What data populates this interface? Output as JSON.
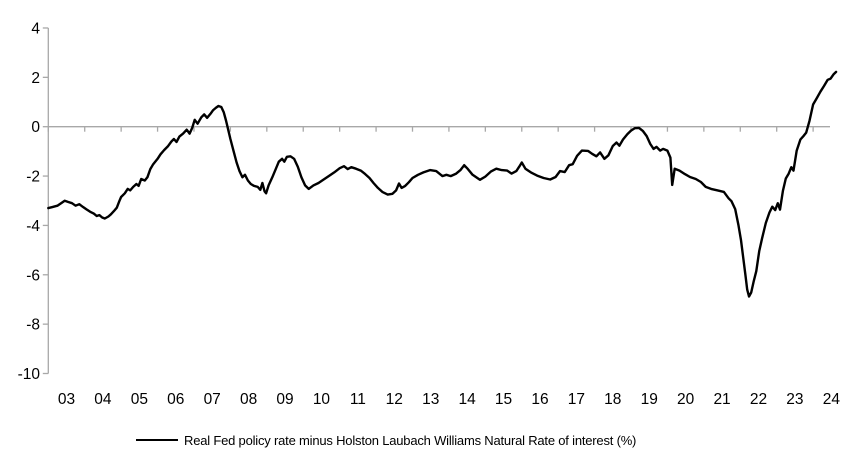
{
  "chart_data": {
    "type": "line",
    "title": "",
    "xlabel": "",
    "ylabel": "",
    "grid": "off",
    "legend_position": "bottom-center",
    "axis_color": "#A8A8A8",
    "background": "#ffffff",
    "x_axis": {
      "tick_years": [
        2003,
        2004,
        2005,
        2006,
        2007,
        2008,
        2009,
        2010,
        2011,
        2012,
        2013,
        2014,
        2015,
        2016,
        2017,
        2018,
        2019,
        2020,
        2021,
        2022,
        2023,
        2024
      ],
      "tick_labels": [
        "03",
        "04",
        "05",
        "06",
        "07",
        "08",
        "09",
        "10",
        "11",
        "12",
        "13",
        "14",
        "15",
        "16",
        "17",
        "18",
        "19",
        "20",
        "21",
        "22",
        "23",
        "24"
      ],
      "range": [
        2003,
        2024.63
      ],
      "axis_drawn_at_value": 0
    },
    "y_axis": {
      "ticks": [
        4,
        2,
        0,
        -2,
        -4,
        -6,
        -8,
        -10
      ],
      "tick_labels": [
        "4",
        "2",
        "0",
        "-2",
        "-4",
        "-6",
        "-8",
        "-10"
      ],
      "range": [
        -10,
        4
      ]
    },
    "series": [
      {
        "name": "Real Fed policy rate minus Holston Laubach Williams Natural Rate of interest (%)",
        "color": "#000000",
        "points": [
          [
            2003.0,
            -3.3
          ],
          [
            2003.1,
            -3.26
          ],
          [
            2003.25,
            -3.2
          ],
          [
            2003.37,
            -3.08
          ],
          [
            2003.45,
            -3.0
          ],
          [
            2003.55,
            -3.05
          ],
          [
            2003.65,
            -3.1
          ],
          [
            2003.75,
            -3.2
          ],
          [
            2003.85,
            -3.14
          ],
          [
            2003.95,
            -3.25
          ],
          [
            2004.05,
            -3.35
          ],
          [
            2004.15,
            -3.45
          ],
          [
            2004.25,
            -3.52
          ],
          [
            2004.33,
            -3.62
          ],
          [
            2004.4,
            -3.58
          ],
          [
            2004.48,
            -3.68
          ],
          [
            2004.55,
            -3.72
          ],
          [
            2004.65,
            -3.64
          ],
          [
            2004.72,
            -3.55
          ],
          [
            2004.8,
            -3.42
          ],
          [
            2004.88,
            -3.28
          ],
          [
            2004.95,
            -3.02
          ],
          [
            2005.0,
            -2.85
          ],
          [
            2005.1,
            -2.7
          ],
          [
            2005.18,
            -2.52
          ],
          [
            2005.25,
            -2.58
          ],
          [
            2005.33,
            -2.44
          ],
          [
            2005.42,
            -2.32
          ],
          [
            2005.48,
            -2.4
          ],
          [
            2005.55,
            -2.12
          ],
          [
            2005.65,
            -2.18
          ],
          [
            2005.72,
            -2.05
          ],
          [
            2005.8,
            -1.72
          ],
          [
            2005.88,
            -1.52
          ],
          [
            2006.0,
            -1.3
          ],
          [
            2006.08,
            -1.12
          ],
          [
            2006.18,
            -0.95
          ],
          [
            2006.28,
            -0.8
          ],
          [
            2006.38,
            -0.6
          ],
          [
            2006.45,
            -0.5
          ],
          [
            2006.52,
            -0.62
          ],
          [
            2006.6,
            -0.4
          ],
          [
            2006.7,
            -0.28
          ],
          [
            2006.8,
            -0.12
          ],
          [
            2006.88,
            -0.28
          ],
          [
            2006.95,
            -0.05
          ],
          [
            2007.02,
            0.28
          ],
          [
            2007.1,
            0.12
          ],
          [
            2007.2,
            0.38
          ],
          [
            2007.28,
            0.5
          ],
          [
            2007.36,
            0.36
          ],
          [
            2007.45,
            0.52
          ],
          [
            2007.52,
            0.66
          ],
          [
            2007.6,
            0.76
          ],
          [
            2007.67,
            0.84
          ],
          [
            2007.75,
            0.8
          ],
          [
            2007.82,
            0.58
          ],
          [
            2007.88,
            0.25
          ],
          [
            2007.94,
            -0.12
          ],
          [
            2008.0,
            -0.5
          ],
          [
            2008.08,
            -0.95
          ],
          [
            2008.17,
            -1.45
          ],
          [
            2008.25,
            -1.8
          ],
          [
            2008.33,
            -2.05
          ],
          [
            2008.4,
            -1.95
          ],
          [
            2008.48,
            -2.18
          ],
          [
            2008.56,
            -2.32
          ],
          [
            2008.65,
            -2.4
          ],
          [
            2008.75,
            -2.44
          ],
          [
            2008.82,
            -2.56
          ],
          [
            2008.88,
            -2.28
          ],
          [
            2008.94,
            -2.62
          ],
          [
            2008.98,
            -2.7
          ],
          [
            2009.05,
            -2.38
          ],
          [
            2009.15,
            -2.05
          ],
          [
            2009.25,
            -1.7
          ],
          [
            2009.33,
            -1.42
          ],
          [
            2009.42,
            -1.3
          ],
          [
            2009.48,
            -1.42
          ],
          [
            2009.55,
            -1.22
          ],
          [
            2009.65,
            -1.2
          ],
          [
            2009.75,
            -1.3
          ],
          [
            2009.85,
            -1.62
          ],
          [
            2009.95,
            -2.05
          ],
          [
            2010.05,
            -2.38
          ],
          [
            2010.15,
            -2.52
          ],
          [
            2010.28,
            -2.38
          ],
          [
            2010.42,
            -2.28
          ],
          [
            2010.55,
            -2.15
          ],
          [
            2010.7,
            -2.0
          ],
          [
            2010.85,
            -1.85
          ],
          [
            2011.0,
            -1.68
          ],
          [
            2011.12,
            -1.6
          ],
          [
            2011.22,
            -1.72
          ],
          [
            2011.32,
            -1.64
          ],
          [
            2011.45,
            -1.7
          ],
          [
            2011.58,
            -1.78
          ],
          [
            2011.7,
            -1.92
          ],
          [
            2011.82,
            -2.08
          ],
          [
            2011.93,
            -2.28
          ],
          [
            2012.05,
            -2.48
          ],
          [
            2012.18,
            -2.65
          ],
          [
            2012.32,
            -2.75
          ],
          [
            2012.45,
            -2.72
          ],
          [
            2012.55,
            -2.58
          ],
          [
            2012.63,
            -2.3
          ],
          [
            2012.7,
            -2.48
          ],
          [
            2012.8,
            -2.4
          ],
          [
            2012.9,
            -2.25
          ],
          [
            2013.0,
            -2.08
          ],
          [
            2013.15,
            -1.95
          ],
          [
            2013.3,
            -1.85
          ],
          [
            2013.48,
            -1.76
          ],
          [
            2013.65,
            -1.8
          ],
          [
            2013.82,
            -2.0
          ],
          [
            2013.93,
            -1.95
          ],
          [
            2014.05,
            -2.0
          ],
          [
            2014.2,
            -1.9
          ],
          [
            2014.32,
            -1.75
          ],
          [
            2014.42,
            -1.56
          ],
          [
            2014.52,
            -1.72
          ],
          [
            2014.65,
            -1.95
          ],
          [
            2014.85,
            -2.15
          ],
          [
            2015.0,
            -2.02
          ],
          [
            2015.15,
            -1.82
          ],
          [
            2015.3,
            -1.7
          ],
          [
            2015.45,
            -1.76
          ],
          [
            2015.6,
            -1.78
          ],
          [
            2015.72,
            -1.9
          ],
          [
            2015.85,
            -1.8
          ],
          [
            2015.93,
            -1.62
          ],
          [
            2016.0,
            -1.45
          ],
          [
            2016.1,
            -1.7
          ],
          [
            2016.25,
            -1.85
          ],
          [
            2016.42,
            -1.98
          ],
          [
            2016.6,
            -2.08
          ],
          [
            2016.78,
            -2.14
          ],
          [
            2016.93,
            -2.04
          ],
          [
            2017.05,
            -1.8
          ],
          [
            2017.18,
            -1.84
          ],
          [
            2017.3,
            -1.56
          ],
          [
            2017.4,
            -1.52
          ],
          [
            2017.52,
            -1.18
          ],
          [
            2017.65,
            -0.97
          ],
          [
            2017.82,
            -0.98
          ],
          [
            2017.93,
            -1.1
          ],
          [
            2018.05,
            -1.2
          ],
          [
            2018.15,
            -1.04
          ],
          [
            2018.27,
            -1.3
          ],
          [
            2018.38,
            -1.16
          ],
          [
            2018.5,
            -0.78
          ],
          [
            2018.6,
            -0.64
          ],
          [
            2018.68,
            -0.77
          ],
          [
            2018.78,
            -0.52
          ],
          [
            2018.9,
            -0.3
          ],
          [
            2019.0,
            -0.16
          ],
          [
            2019.1,
            -0.06
          ],
          [
            2019.22,
            -0.05
          ],
          [
            2019.33,
            -0.18
          ],
          [
            2019.43,
            -0.38
          ],
          [
            2019.53,
            -0.7
          ],
          [
            2019.62,
            -0.9
          ],
          [
            2019.7,
            -0.82
          ],
          [
            2019.8,
            -0.97
          ],
          [
            2019.88,
            -0.9
          ],
          [
            2020.0,
            -0.97
          ],
          [
            2020.08,
            -1.25
          ],
          [
            2020.13,
            -2.36
          ],
          [
            2020.2,
            -1.7
          ],
          [
            2020.33,
            -1.78
          ],
          [
            2020.48,
            -1.92
          ],
          [
            2020.62,
            -2.04
          ],
          [
            2020.78,
            -2.12
          ],
          [
            2020.92,
            -2.24
          ],
          [
            2021.05,
            -2.44
          ],
          [
            2021.2,
            -2.52
          ],
          [
            2021.38,
            -2.58
          ],
          [
            2021.55,
            -2.64
          ],
          [
            2021.68,
            -2.9
          ],
          [
            2021.76,
            -3.02
          ],
          [
            2021.86,
            -3.34
          ],
          [
            2021.95,
            -4.0
          ],
          [
            2022.02,
            -4.6
          ],
          [
            2022.08,
            -5.3
          ],
          [
            2022.14,
            -6.0
          ],
          [
            2022.19,
            -6.6
          ],
          [
            2022.24,
            -6.88
          ],
          [
            2022.3,
            -6.72
          ],
          [
            2022.37,
            -6.25
          ],
          [
            2022.44,
            -5.85
          ],
          [
            2022.52,
            -5.05
          ],
          [
            2022.6,
            -4.52
          ],
          [
            2022.7,
            -3.9
          ],
          [
            2022.8,
            -3.48
          ],
          [
            2022.88,
            -3.24
          ],
          [
            2022.96,
            -3.38
          ],
          [
            2023.03,
            -3.1
          ],
          [
            2023.09,
            -3.36
          ],
          [
            2023.17,
            -2.6
          ],
          [
            2023.25,
            -2.1
          ],
          [
            2023.33,
            -1.9
          ],
          [
            2023.4,
            -1.64
          ],
          [
            2023.46,
            -1.78
          ],
          [
            2023.55,
            -0.97
          ],
          [
            2023.65,
            -0.52
          ],
          [
            2023.74,
            -0.37
          ],
          [
            2023.81,
            -0.24
          ],
          [
            2023.9,
            0.24
          ],
          [
            2024.0,
            0.9
          ],
          [
            2024.1,
            1.16
          ],
          [
            2024.2,
            1.42
          ],
          [
            2024.3,
            1.65
          ],
          [
            2024.4,
            1.9
          ],
          [
            2024.48,
            1.95
          ],
          [
            2024.56,
            2.12
          ],
          [
            2024.63,
            2.22
          ]
        ]
      }
    ]
  }
}
